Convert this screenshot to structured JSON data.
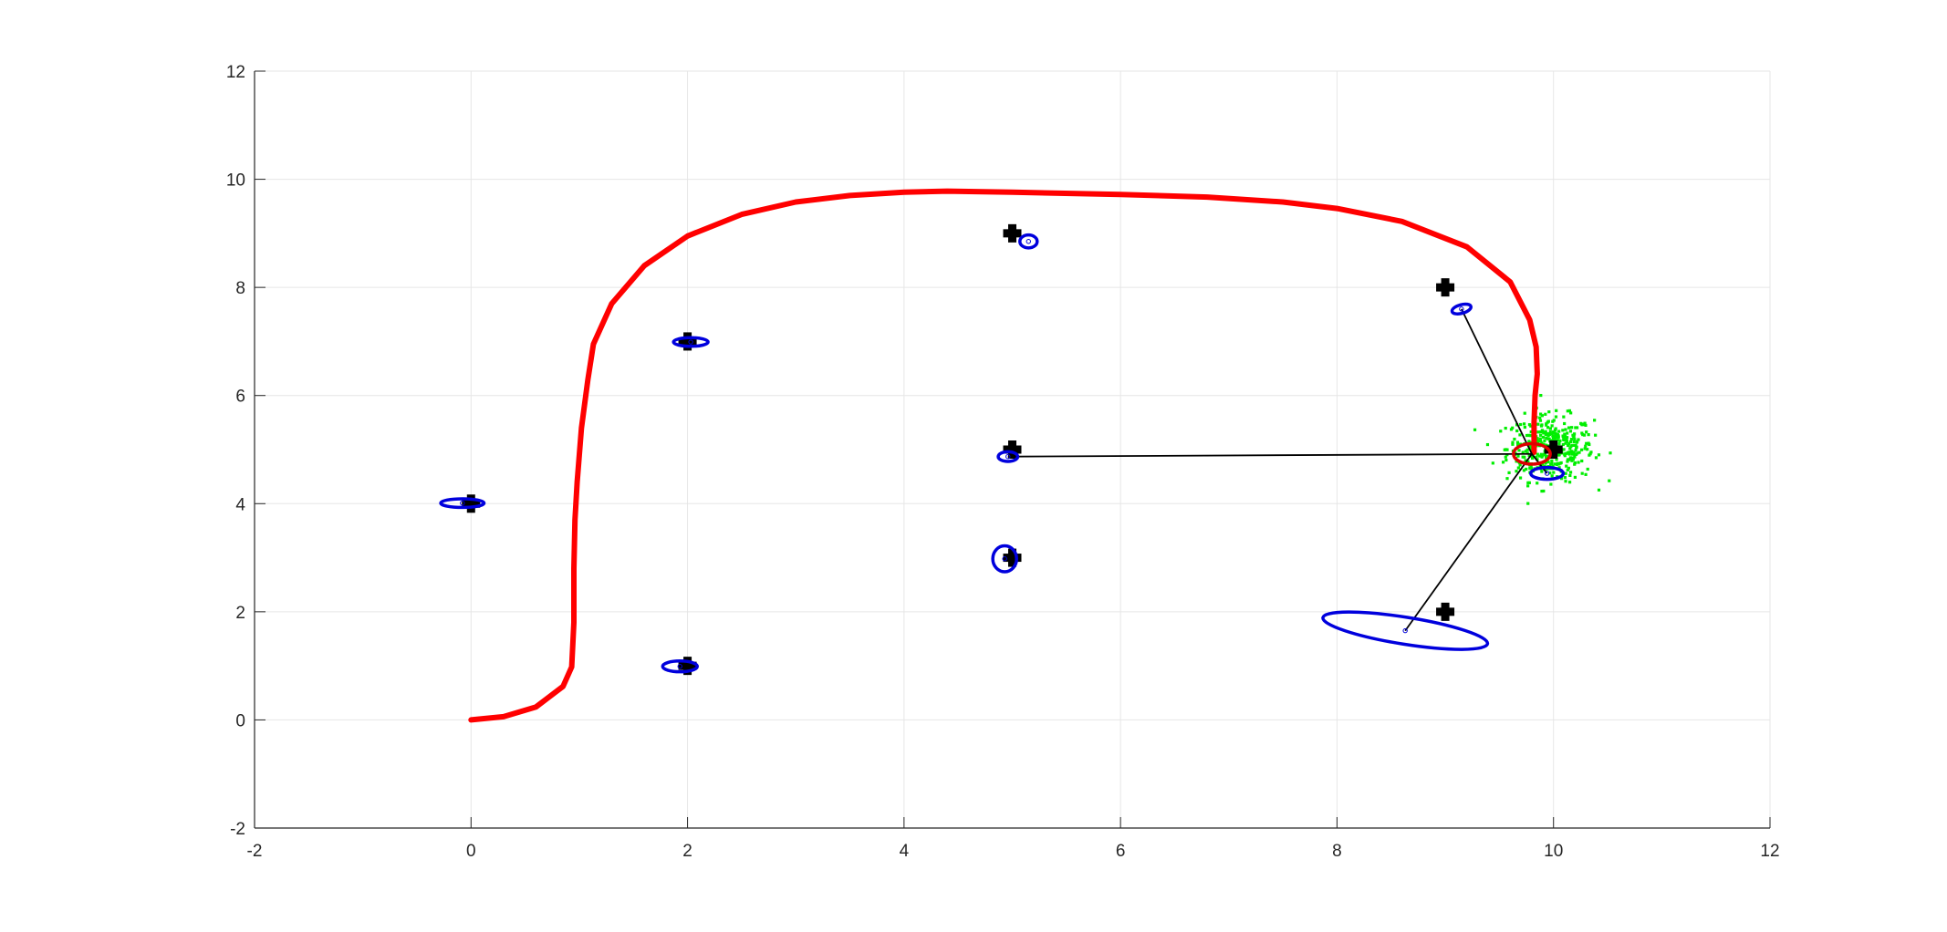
{
  "chart_data": {
    "type": "scatter",
    "title": "",
    "xlabel": "",
    "ylabel": "",
    "xlim": [
      -2,
      12
    ],
    "ylim": [
      -2,
      12
    ],
    "xticks": [
      "-2",
      "0",
      "2",
      "4",
      "6",
      "8",
      "10",
      "12"
    ],
    "yticks": [
      "-2",
      "0",
      "2",
      "4",
      "6",
      "8",
      "10",
      "12"
    ],
    "grid": true,
    "colors": {
      "trajectory": "#ff0000",
      "landmark": "#000000",
      "ellipse": "#0000dd",
      "particles": "#00ee00",
      "robot_ellipse": "#dd0000",
      "grid": "#e6e6e6",
      "axis": "#262626"
    },
    "landmarks": [
      {
        "x": 0,
        "y": 4
      },
      {
        "x": 2,
        "y": 7
      },
      {
        "x": 2,
        "y": 1
      },
      {
        "x": 5,
        "y": 9
      },
      {
        "x": 5,
        "y": 5
      },
      {
        "x": 5,
        "y": 3
      },
      {
        "x": 9,
        "y": 8
      },
      {
        "x": 9,
        "y": 2
      },
      {
        "x": 10,
        "y": 5
      }
    ],
    "estimated_landmarks": [
      {
        "x": -0.08,
        "y": 4.01,
        "rx": 0.2,
        "ry": 0.08,
        "angle": 0
      },
      {
        "x": 2.03,
        "y": 6.99,
        "rx": 0.16,
        "ry": 0.08,
        "angle": 0
      },
      {
        "x": 1.93,
        "y": 0.99,
        "rx": 0.16,
        "ry": 0.1,
        "angle": 0
      },
      {
        "x": 5.15,
        "y": 8.85,
        "rx": 0.08,
        "ry": 0.12,
        "angle": 0
      },
      {
        "x": 4.96,
        "y": 4.87,
        "rx": 0.09,
        "ry": 0.09,
        "angle": 0
      },
      {
        "x": 4.93,
        "y": 2.98,
        "rx": 0.11,
        "ry": 0.24,
        "angle": 0
      },
      {
        "x": 9.15,
        "y": 7.6,
        "rx": 0.09,
        "ry": 0.08,
        "angle": -15
      },
      {
        "x": 8.63,
        "y": 1.65,
        "rx": 0.77,
        "ry": 0.25,
        "angle": 9
      },
      {
        "x": 9.94,
        "y": 4.56,
        "rx": 0.15,
        "ry": 0.11,
        "angle": 0
      }
    ],
    "robot": {
      "x": 9.8,
      "y": 4.92,
      "rx": 0.17,
      "ry": 0.19
    },
    "observation_targets": [
      {
        "x": 9.15,
        "y": 7.6
      },
      {
        "x": 4.96,
        "y": 4.87
      },
      {
        "x": 8.63,
        "y": 1.65
      },
      {
        "x": 9.94,
        "y": 4.56
      }
    ],
    "trajectory": {
      "x": [
        0,
        0.3,
        0.6,
        0.85,
        0.93,
        0.95,
        0.95,
        0.96,
        0.98,
        1.02,
        1.08,
        1.13,
        1.3,
        1.6,
        2.0,
        2.5,
        3.0,
        3.5,
        4.0,
        4.4,
        5.0,
        6.0,
        6.8,
        7.5,
        8.0,
        8.6,
        9.2,
        9.6,
        9.78,
        9.84,
        9.85,
        9.83,
        9.82,
        9.82
      ],
      "y": [
        0,
        0.06,
        0.24,
        0.62,
        0.98,
        1.8,
        2.8,
        3.7,
        4.4,
        5.4,
        6.3,
        6.95,
        7.7,
        8.4,
        8.95,
        9.35,
        9.58,
        9.7,
        9.76,
        9.78,
        9.76,
        9.72,
        9.67,
        9.58,
        9.46,
        9.22,
        8.75,
        8.1,
        7.4,
        6.9,
        6.4,
        6.0,
        5.5,
        4.95
      ]
    },
    "particles": {
      "cx": 9.97,
      "cy": 5.02,
      "sx": 0.2,
      "sy": 0.3,
      "count": 420
    }
  }
}
